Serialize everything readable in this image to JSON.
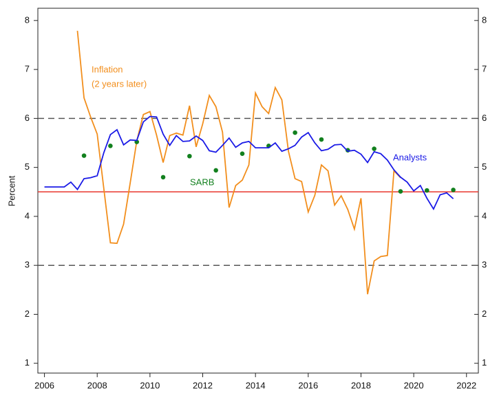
{
  "chart_data": {
    "type": "line",
    "y_label": "Percent",
    "xlim": [
      2005.75,
      2022.45
    ],
    "xticks": [
      2006,
      2008,
      2010,
      2012,
      2014,
      2016,
      2018,
      2020,
      2022
    ],
    "ylim": [
      0.8,
      8.25
    ],
    "yticks": [
      1,
      2,
      3,
      4,
      5,
      6,
      7,
      8
    ],
    "y2lim": [
      0.8,
      8.25
    ],
    "y2ticks": [
      1,
      2,
      3,
      4,
      5,
      6,
      7,
      8
    ],
    "hlines": [
      {
        "value": 6,
        "color": "#555555",
        "style": "dashed"
      },
      {
        "value": 3,
        "color": "#555555",
        "style": "dashed"
      },
      {
        "value": 4.5,
        "color": "#e8362c",
        "style": "solid"
      }
    ],
    "series": [
      {
        "name": "Inflation",
        "note": "(2 years later)",
        "type": "line",
        "color": "#f28e1c",
        "x": [
          2007.25,
          2007.5,
          2007.75,
          2008.0,
          2008.5,
          2008.75,
          2009.0,
          2009.25,
          2009.5,
          2009.75,
          2010.0,
          2010.25,
          2010.5,
          2010.75,
          2011.0,
          2011.25,
          2011.5,
          2011.75,
          2012.0,
          2012.25,
          2012.5,
          2012.75,
          2013.0,
          2013.25,
          2013.5,
          2013.75,
          2014.0,
          2014.25,
          2014.5,
          2014.75,
          2015.0,
          2015.25,
          2015.5,
          2015.75,
          2016.0,
          2016.25,
          2016.5,
          2016.75,
          2017.0,
          2017.25,
          2017.5,
          2017.75,
          2018.0,
          2018.25,
          2018.5,
          2018.75,
          2019.0,
          2019.25,
          2019.5
        ],
        "values": [
          7.79,
          6.42,
          6.03,
          5.68,
          3.46,
          3.45,
          3.84,
          4.68,
          5.54,
          6.08,
          6.14,
          5.66,
          5.1,
          5.65,
          5.7,
          5.66,
          6.26,
          5.42,
          5.89,
          6.47,
          6.24,
          5.72,
          4.18,
          4.63,
          4.74,
          5.05,
          6.52,
          6.24,
          6.1,
          6.63,
          6.38,
          5.33,
          4.77,
          4.71,
          4.09,
          4.43,
          5.05,
          4.93,
          4.23,
          4.42,
          4.14,
          3.74,
          4.37,
          2.41,
          3.09,
          3.18,
          3.2,
          4.93,
          4.79
        ]
      },
      {
        "name": "SARB",
        "type": "scatter",
        "color": "#12801e",
        "x": [
          2007.5,
          2008.5,
          2009.5,
          2010.5,
          2011.5,
          2012.5,
          2013.5,
          2014.5,
          2015.5,
          2016.5,
          2017.5,
          2018.5,
          2019.5,
          2020.5,
          2021.5
        ],
        "values": [
          5.24,
          5.44,
          5.52,
          4.8,
          5.23,
          4.94,
          5.28,
          5.44,
          5.71,
          5.57,
          5.35,
          5.38,
          4.51,
          4.53,
          4.54
        ]
      },
      {
        "name": "Analysts",
        "type": "line",
        "color": "#1a1ae6",
        "x": [
          2006,
          2006.25,
          2006.5,
          2006.75,
          2007,
          2007.25,
          2007.5,
          2007.75,
          2008,
          2008.25,
          2008.5,
          2008.75,
          2009,
          2009.25,
          2009.5,
          2009.75,
          2010,
          2010.25,
          2010.5,
          2010.75,
          2011,
          2011.25,
          2011.5,
          2011.75,
          2012,
          2012.25,
          2012.5,
          2012.75,
          2013,
          2013.25,
          2013.5,
          2013.75,
          2014,
          2014.25,
          2014.5,
          2014.75,
          2015,
          2015.25,
          2015.5,
          2015.75,
          2016,
          2016.25,
          2016.5,
          2016.75,
          2017,
          2017.25,
          2017.5,
          2017.75,
          2018,
          2018.25,
          2018.5,
          2018.75,
          2019,
          2019.25,
          2019.5,
          2019.75,
          2020,
          2020.25,
          2020.5,
          2020.75,
          2021,
          2021.25,
          2021.5
        ],
        "values": [
          4.6,
          4.6,
          4.6,
          4.6,
          4.7,
          4.55,
          4.77,
          4.79,
          4.83,
          5.3,
          5.67,
          5.77,
          5.46,
          5.56,
          5.55,
          5.93,
          6.04,
          6.03,
          5.68,
          5.45,
          5.65,
          5.53,
          5.54,
          5.64,
          5.55,
          5.34,
          5.31,
          5.45,
          5.6,
          5.41,
          5.5,
          5.53,
          5.4,
          5.4,
          5.4,
          5.5,
          5.33,
          5.38,
          5.45,
          5.62,
          5.71,
          5.5,
          5.34,
          5.37,
          5.46,
          5.47,
          5.33,
          5.35,
          5.27,
          5.1,
          5.32,
          5.28,
          5.15,
          4.95,
          4.8,
          4.7,
          4.52,
          4.63,
          4.37,
          4.15,
          4.44,
          4.48,
          4.36
        ]
      }
    ]
  }
}
